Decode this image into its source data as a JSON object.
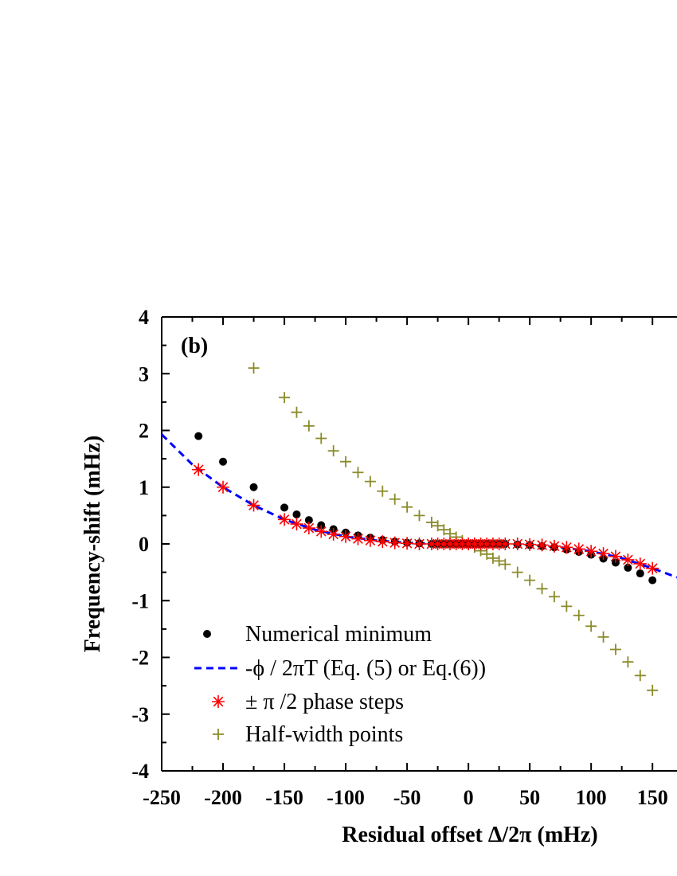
{
  "chart_data": {
    "type": "scatter",
    "panel_label": "(b)",
    "xlabel": "Residual offset Δ/2π (mHz)",
    "ylabel": "Frequency-shift (mHz)",
    "xlim": [
      -250,
      170
    ],
    "ylim": [
      -4,
      4
    ],
    "x_ticks": [
      -250,
      -200,
      -150,
      -100,
      -50,
      0,
      50,
      100,
      150
    ],
    "y_ticks": [
      4,
      3,
      2,
      1,
      0,
      -1,
      -2,
      -3,
      -4
    ],
    "x_tick_labels": [
      "-250",
      "-200",
      "-150",
      "-100",
      "-50",
      "0",
      "50",
      "100",
      "150"
    ],
    "y_tick_labels": [
      "4",
      "3",
      "2",
      "1",
      "0",
      "-1",
      "-2",
      "-3",
      "-4"
    ],
    "grid": false,
    "legend_position": "bottom-left",
    "colors": {
      "numerical": "#000000",
      "curve": "#0000ff",
      "phase": "#ff0000",
      "halfwidth": "#8b8b2a"
    },
    "series": [
      {
        "name": "Numerical minimum",
        "marker": "dot",
        "x": [
          -220,
          -200,
          -175,
          -150,
          -140,
          -130,
          -120,
          -110,
          -100,
          -90,
          -80,
          -70,
          -60,
          -50,
          -40,
          -30,
          -25,
          -20,
          -15,
          -10,
          -5,
          0,
          5,
          10,
          15,
          20,
          25,
          30,
          40,
          50,
          60,
          70,
          80,
          90,
          100,
          110,
          120,
          130,
          140,
          150
        ],
        "y": [
          1.9,
          1.45,
          1.0,
          0.64,
          0.52,
          0.42,
          0.33,
          0.26,
          0.2,
          0.15,
          0.11,
          0.07,
          0.04,
          0.02,
          0.01,
          0.0,
          0.0,
          0.0,
          0.0,
          0.0,
          0.0,
          0.0,
          0.0,
          0.0,
          0.0,
          0.0,
          0.0,
          0.0,
          -0.01,
          -0.02,
          -0.04,
          -0.06,
          -0.1,
          -0.14,
          -0.19,
          -0.26,
          -0.33,
          -0.42,
          -0.52,
          -0.64
        ]
      },
      {
        "name": "-ϕ / 2πT (Eq. (5) or Eq.(6))",
        "marker": "dashed-line",
        "x": [
          -250,
          -225,
          -200,
          -175,
          -150,
          -125,
          -100,
          -75,
          -50,
          -25,
          0,
          25,
          50,
          75,
          100,
          125,
          150,
          170
        ],
        "y": [
          1.93,
          1.4,
          1.0,
          0.68,
          0.43,
          0.25,
          0.13,
          0.06,
          0.02,
          0.0,
          0.0,
          0.0,
          -0.02,
          -0.06,
          -0.13,
          -0.25,
          -0.43,
          -0.59
        ]
      },
      {
        "name": "± π /2 phase steps",
        "marker": "asterisk",
        "x": [
          -220,
          -200,
          -175,
          -150,
          -140,
          -130,
          -120,
          -110,
          -100,
          -90,
          -80,
          -70,
          -60,
          -50,
          -40,
          -30,
          -25,
          -20,
          -15,
          -10,
          -5,
          0,
          5,
          10,
          15,
          20,
          25,
          30,
          40,
          50,
          60,
          70,
          80,
          90,
          100,
          110,
          120,
          130,
          140,
          150
        ],
        "y": [
          1.31,
          1.0,
          0.68,
          0.43,
          0.35,
          0.28,
          0.22,
          0.17,
          0.13,
          0.09,
          0.06,
          0.04,
          0.02,
          0.01,
          0.0,
          0.0,
          0.0,
          0.0,
          0.0,
          0.0,
          0.0,
          0.0,
          0.0,
          0.0,
          0.0,
          0.0,
          0.0,
          0.0,
          0.0,
          -0.01,
          -0.02,
          -0.04,
          -0.06,
          -0.09,
          -0.13,
          -0.17,
          -0.22,
          -0.28,
          -0.35,
          -0.43
        ]
      },
      {
        "name": "Half-width points",
        "marker": "plus",
        "x": [
          -175,
          -150,
          -140,
          -130,
          -120,
          -110,
          -100,
          -90,
          -80,
          -70,
          -60,
          -50,
          -40,
          -30,
          -25,
          -20,
          -15,
          -10,
          -5,
          0,
          5,
          10,
          15,
          20,
          25,
          30,
          40,
          50,
          60,
          70,
          80,
          90,
          100,
          110,
          120,
          130,
          140,
          150
        ],
        "y": [
          3.1,
          2.58,
          2.32,
          2.08,
          1.86,
          1.64,
          1.45,
          1.26,
          1.1,
          0.93,
          0.79,
          0.65,
          0.5,
          0.38,
          0.32,
          0.25,
          0.18,
          0.12,
          0.06,
          0.0,
          -0.06,
          -0.12,
          -0.18,
          -0.25,
          -0.3,
          -0.36,
          -0.5,
          -0.64,
          -0.79,
          -0.93,
          -1.1,
          -1.26,
          -1.45,
          -1.64,
          -1.86,
          -2.08,
          -2.32,
          -2.58
        ]
      }
    ]
  }
}
